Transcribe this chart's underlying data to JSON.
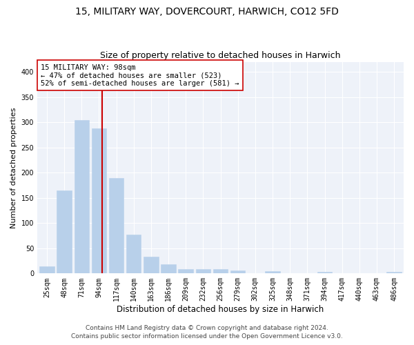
{
  "title1": "15, MILITARY WAY, DOVERCOURT, HARWICH, CO12 5FD",
  "title2": "Size of property relative to detached houses in Harwich",
  "xlabel": "Distribution of detached houses by size in Harwich",
  "ylabel": "Number of detached properties",
  "categories": [
    "25sqm",
    "48sqm",
    "71sqm",
    "94sqm",
    "117sqm",
    "140sqm",
    "163sqm",
    "186sqm",
    "209sqm",
    "232sqm",
    "256sqm",
    "279sqm",
    "302sqm",
    "325sqm",
    "348sqm",
    "371sqm",
    "394sqm",
    "417sqm",
    "440sqm",
    "463sqm",
    "486sqm"
  ],
  "values": [
    14,
    165,
    305,
    288,
    190,
    77,
    33,
    18,
    9,
    8,
    9,
    6,
    0,
    5,
    0,
    0,
    3,
    0,
    0,
    0,
    3
  ],
  "bar_color": "#b8d0ea",
  "bar_edgecolor": "#b8d0ea",
  "vline_color": "#cc0000",
  "annotation_text": "15 MILITARY WAY: 98sqm\n← 47% of detached houses are smaller (523)\n52% of semi-detached houses are larger (581) →",
  "annotation_box_color": "white",
  "annotation_box_edgecolor": "#cc0000",
  "ylim": [
    0,
    420
  ],
  "yticks": [
    0,
    50,
    100,
    150,
    200,
    250,
    300,
    350,
    400
  ],
  "footer1": "Contains HM Land Registry data © Crown copyright and database right 2024.",
  "footer2": "Contains public sector information licensed under the Open Government Licence v3.0.",
  "bg_color": "#eef2f9",
  "grid_color": "#ffffff",
  "title_fontsize": 10,
  "subtitle_fontsize": 9,
  "tick_fontsize": 7,
  "ylabel_fontsize": 8,
  "xlabel_fontsize": 8.5,
  "footer_fontsize": 6.5,
  "annotation_fontsize": 7.5
}
